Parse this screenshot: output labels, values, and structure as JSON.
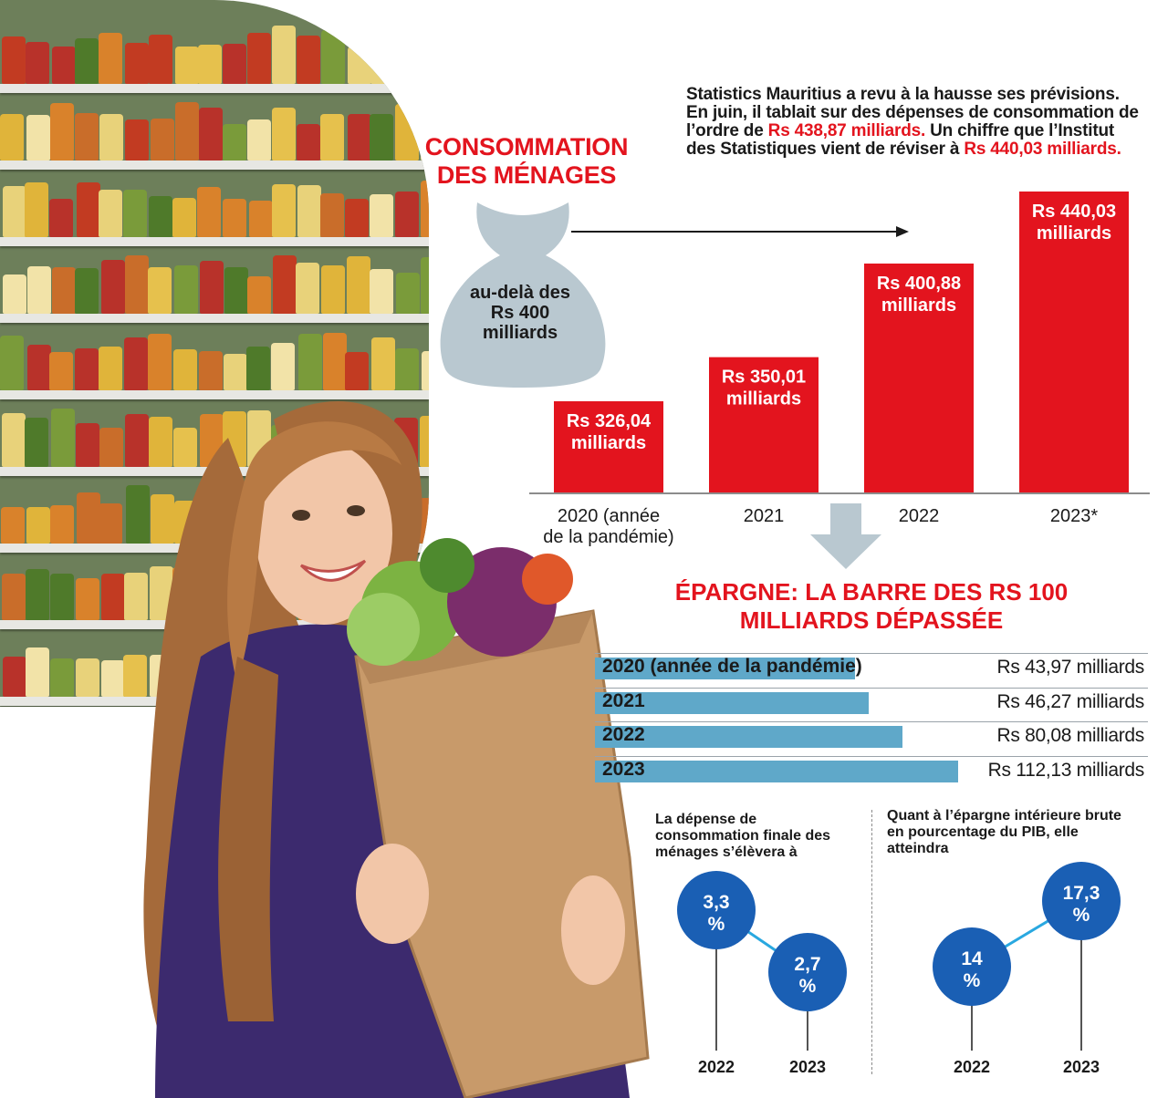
{
  "title": "CONSOMMATION DES MÉNAGES",
  "bag_label": "au-delà des Rs 400 milliards",
  "note": {
    "part1": "Statistics Mauritius a revu à la hausse ses prévisions. En juin, il tablait sur des dépenses de consommation de l’ordre de",
    "highlight1": "Rs 438,87 milliards.",
    "part2": "Un chiffre que l’Institut des Statistiques vient de réviser à",
    "highlight2": "Rs 440,03 milliards."
  },
  "savings_title": "ÉPARGNE: LA BARRE DES RS 100 MILLIARDS DÉPASSÉE",
  "left_panel_text": "La dépense de consommation finale des ménages s’élèvera à",
  "right_panel_text": "Quant à l’épargne intérieure brute en pourcentage du PIB, elle atteindra",
  "colors": {
    "red": "#e3141e",
    "blue_bar": "#5fa8c9",
    "circle_blue": "#1a5fb4",
    "connector": "#29a8e0",
    "bag": "#b9c8d0",
    "arrow_grey": "#b9c8d0"
  },
  "chart_data": [
    {
      "type": "bar",
      "categories": [
        "2020 (année de la pandémie)",
        "2021",
        "2022",
        "2023*"
      ],
      "values": [
        326.04,
        350.01,
        400.88,
        440.03
      ],
      "bar_labels": [
        "Rs 326,04 milliards",
        "Rs 350,01 milliards",
        "Rs 400,88 milliards",
        "Rs 440,03 milliards"
      ],
      "title": "CONSOMMATION DES MÉNAGES",
      "xlabel": "",
      "ylabel": ""
    },
    {
      "type": "bar",
      "orientation": "horizontal",
      "categories": [
        "2020 (année de la pandémie)",
        "2021",
        "2022",
        "2023"
      ],
      "values": [
        43.97,
        46.27,
        80.08,
        112.13
      ],
      "value_labels": [
        "Rs 43,97 milliards",
        "Rs 46,27 milliards",
        "Rs 80,08 milliards",
        "Rs 112,13 milliards"
      ],
      "title": "ÉPARGNE: LA BARRE DES RS 100 MILLIARDS DÉPASSÉE"
    },
    {
      "type": "line",
      "x": [
        "2022",
        "2023"
      ],
      "values": [
        3.3,
        2.7
      ],
      "value_labels": [
        "3,3 %",
        "2,7 %"
      ],
      "title": "La dépense de consommation finale des ménages s’élèvera à"
    },
    {
      "type": "line",
      "x": [
        "2022",
        "2023"
      ],
      "values": [
        14,
        17.3
      ],
      "value_labels": [
        "14 %",
        "17,3 %"
      ],
      "title": "Quant à l’épargne intérieure brute en pourcentage du PIB, elle atteindra"
    }
  ]
}
